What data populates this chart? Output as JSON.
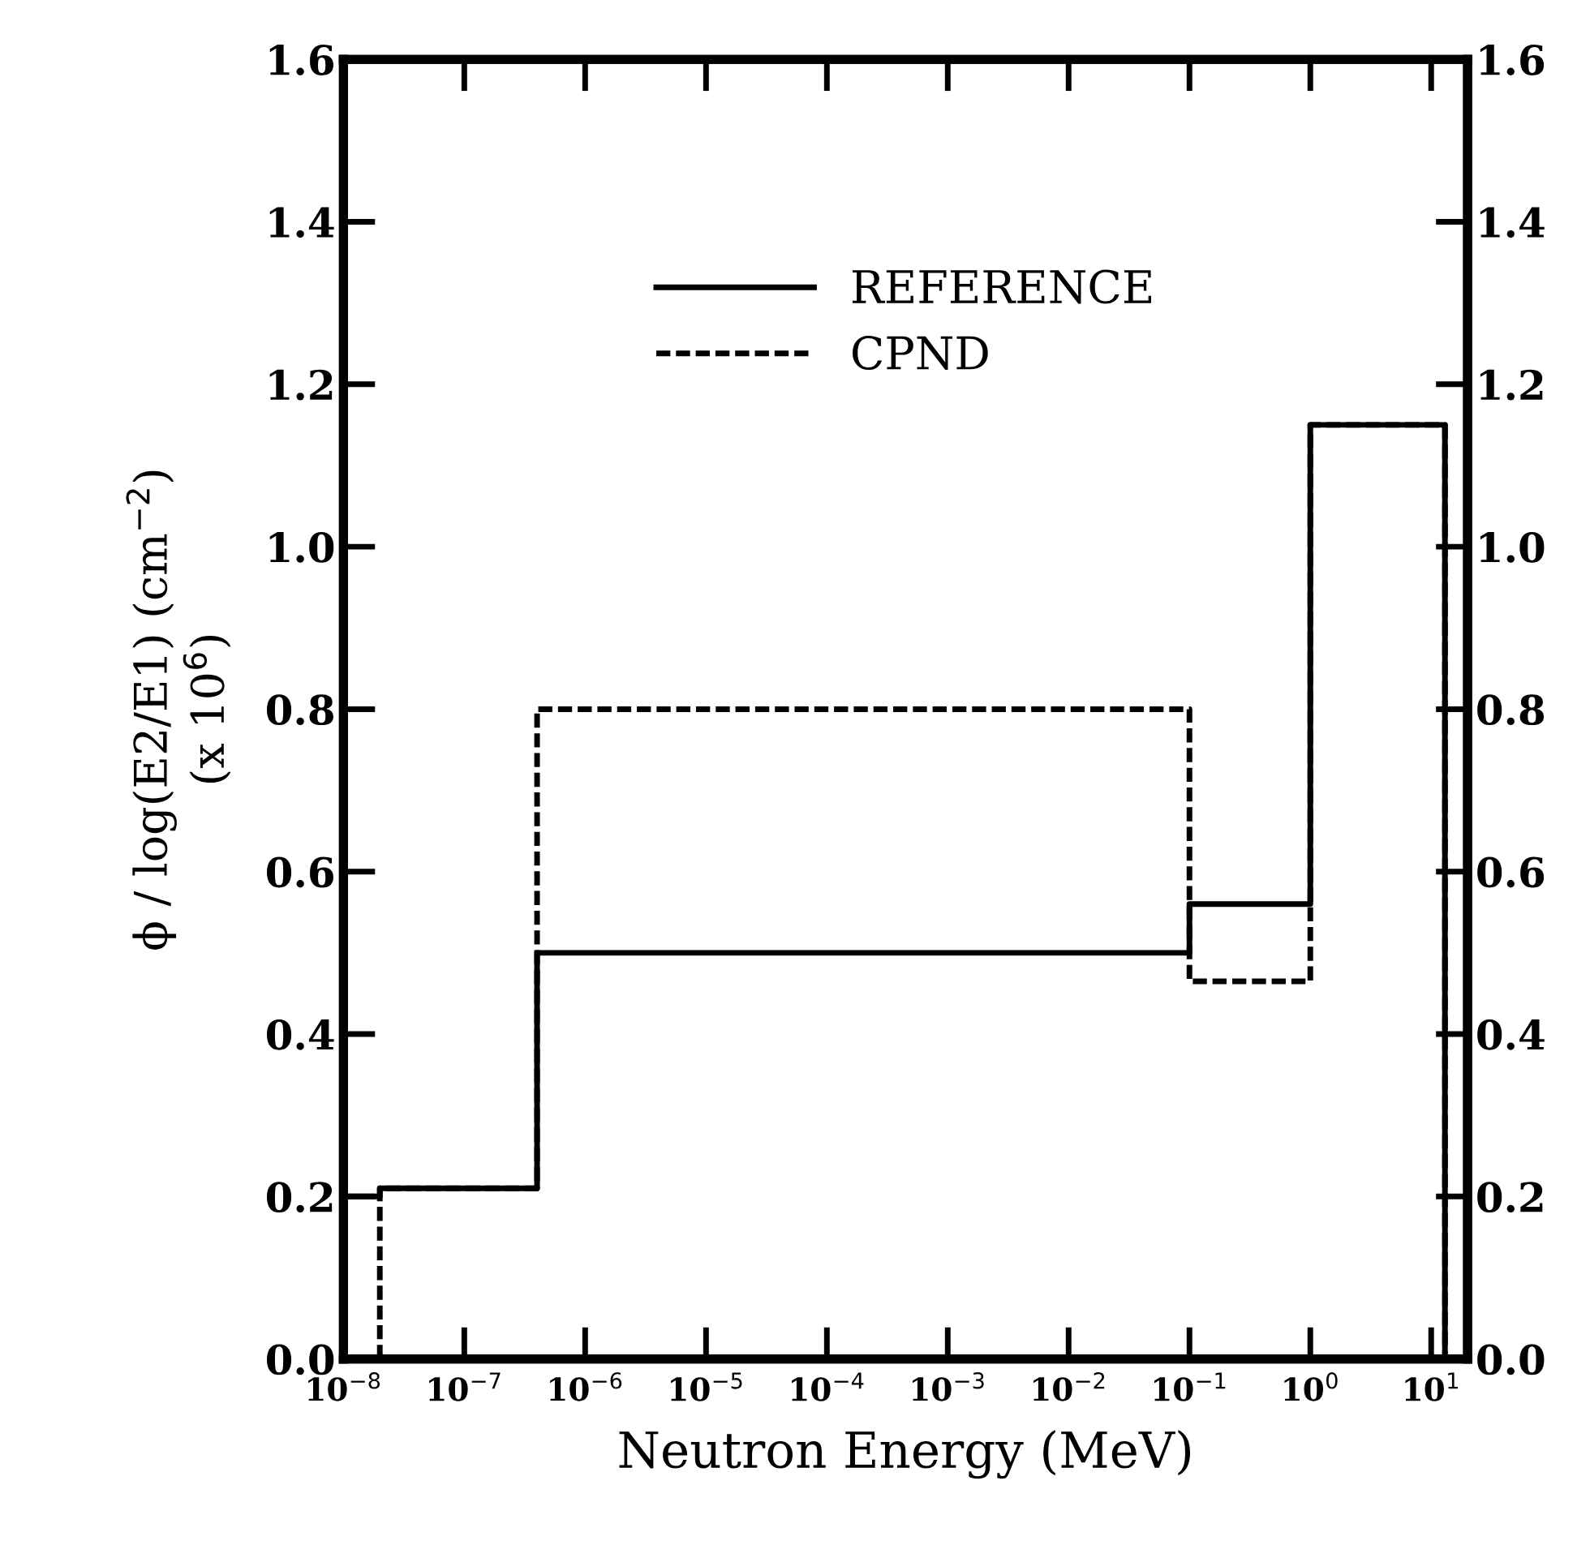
{
  "chart_data": {
    "type": "step",
    "xlabel": "Neutron Energy (MeV)",
    "ylabel": "ϕ / log(E2/E1) (cm$^{−2}$)\n(x 10$^{6}$)",
    "log": "x",
    "xlim": [
      1e-08,
      20
    ],
    "xticks": [
      {
        "value": 1e-08,
        "label": "10$^{−8}$"
      },
      {
        "value": 1e-07,
        "label": "10$^{−7}$"
      },
      {
        "value": 1e-06,
        "label": "10$^{−6}$"
      },
      {
        "value": 1e-05,
        "label": "10$^{−5}$"
      },
      {
        "value": 0.0001,
        "label": "10$^{−4}$"
      },
      {
        "value": 0.001,
        "label": "10$^{−3}$"
      },
      {
        "value": 0.01,
        "label": "10$^{−2}$"
      },
      {
        "value": 0.1,
        "label": "10$^{−1}$"
      },
      {
        "value": 1,
        "label": "10$^{0}$"
      },
      {
        "value": 10,
        "label": "10$^{1}$"
      }
    ],
    "ylim": [
      0,
      1.6
    ],
    "yticks": [
      {
        "value": 0,
        "label": "0.0"
      },
      0.2,
      0.4,
      0.6,
      0.8,
      {
        "value": 1.0,
        "label": "1.0"
      },
      1.2,
      1.4,
      1.6
    ],
    "y2lim": [
      0,
      1.6
    ],
    "y2ticks": [
      {
        "value": 0,
        "label": "0.0"
      },
      0.2,
      0.4,
      0.6,
      0.8,
      {
        "value": 1.0,
        "label": "1.0"
      },
      1.2,
      1.4,
      1.6
    ],
    "legend": "top",
    "grid": false,
    "series": [
      {
        "name": "REFERENCE",
        "color": "#000000",
        "line_style": "solid",
        "x": [
          1e-08,
          2e-08,
          4e-07,
          0.1,
          1,
          13
        ],
        "values": [
          0.2,
          0.21,
          0.5,
          0.56,
          1.15,
          0
        ]
      },
      {
        "name": "CPND",
        "color": "#000000",
        "line_style": "dashed",
        "x": [
          2e-08,
          2e-08,
          4e-07,
          0.1,
          1,
          13
        ],
        "values": [
          0,
          0.21,
          0.8,
          0.465,
          1.15,
          0
        ]
      }
    ]
  }
}
